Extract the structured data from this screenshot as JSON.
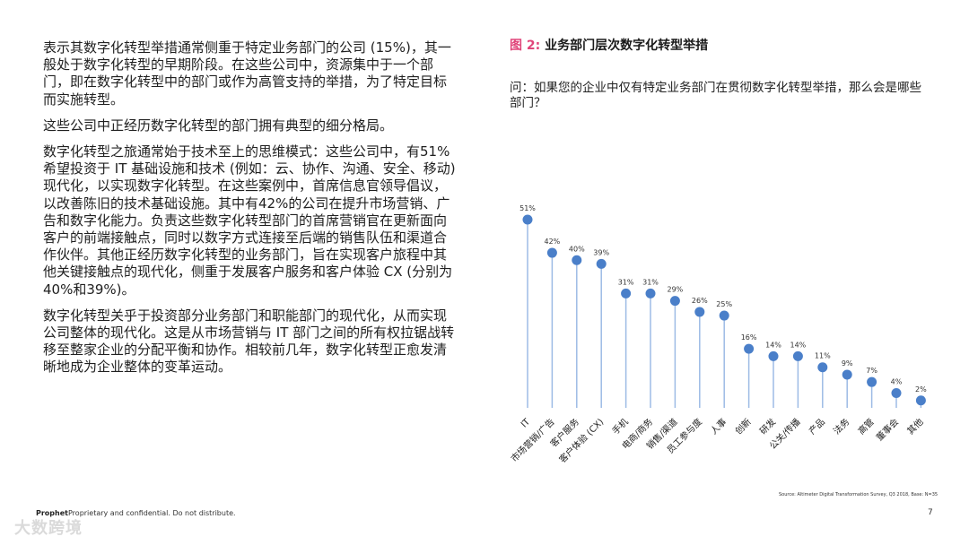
{
  "text": {
    "paragraphs": [
      "表示其数字化转型举措通常侧重于特定业务部门的公司 (15%)，其一般处于数字化转型的早期阶段。在这些公司中，资源集中于一个部门，即在数字化转型中的部门或作为高管支持的举措，为了特定目标而实施转型。",
      "这些公司中正经历数字化转型的部门拥有典型的细分格局。",
      "数字化转型之旅通常始于技术至上的思维模式：这些公司中，有51%希望投资于 IT 基础设施和技术 (例如：云、协作、沟通、安全、移动) 现代化，以实现数字化转型。在这些案例中，首席信息官领导倡议，以改善陈旧的技术基础设施。其中有42%的公司在提升市场营销、广告和数字化能力。负责这些数字化转型部门的首席营销官在更新面向客户的前端接触点，同时以数字方式连接至后端的销售队伍和渠道合作伙伴。其他正经历数字化转型的业务部门，旨在实现客户旅程中其他关键接触点的现代化，侧重于发展客户服务和客户体验 CX (分别为40%和39%)。",
      "数字化转型关乎于投资部分业务部门和职能部门的现代化，从而实现公司整体的现代化。这是从市场营销与 IT 部门之间的所有权拉锯战转移至整家企业的分配平衡和协作。相较前几年，数字化转型正愈发清晰地成为企业整体的变革运动。"
    ]
  },
  "figure": {
    "label": "图 2:",
    "title": "业务部门层次数字化转型举措",
    "question": "问：如果您的企业中仅有特定业务部门在贯彻数字化转型举措，那么会是哪些部门？"
  },
  "chart_data": {
    "type": "scatter",
    "style": "lollipop",
    "categories": [
      "IT",
      "市场营销/广告",
      "客户服务",
      "客户体验 (CX)",
      "手机",
      "电商/商务",
      "销售/渠道",
      "员工参与度",
      "人事",
      "创新",
      "研发",
      "公关/传播",
      "产品",
      "法务",
      "高管",
      "董事会",
      "其他"
    ],
    "values": [
      51,
      42,
      40,
      39,
      31,
      31,
      29,
      26,
      25,
      16,
      14,
      14,
      11,
      9,
      7,
      4,
      2
    ],
    "value_labels": [
      "51%",
      "42%",
      "40%",
      "39%",
      "31%",
      "31%",
      "29%",
      "26%",
      "25%",
      "16%",
      "14%",
      "14%",
      "11%",
      "9%",
      "7%",
      "4%",
      "2%"
    ],
    "ylim": [
      0,
      51
    ],
    "unit": "%",
    "grid": false
  },
  "source": "Source: Altimeter Digital Transformation Survey, Q3 2018, Base: N=35",
  "footer": {
    "brand": "Prophet",
    "note": "Proprietary and confidential. Do not distribute.",
    "page": "7"
  },
  "watermark": "大数跨境",
  "colors": {
    "dot": "#4a7fc9",
    "stem": "#9dbbe5",
    "accent": "#e0457a"
  }
}
